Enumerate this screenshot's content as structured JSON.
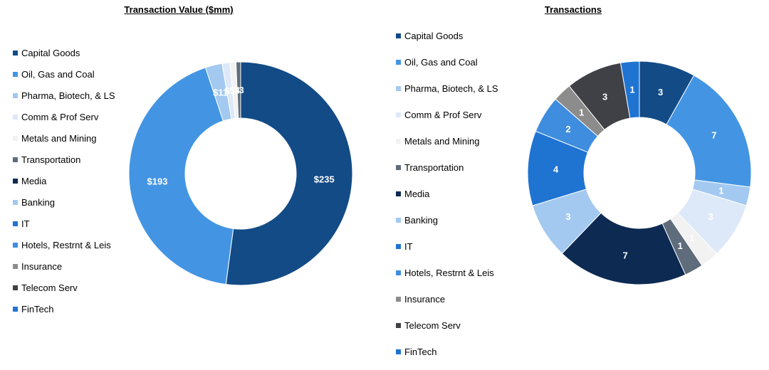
{
  "chart_data": [
    {
      "type": "pie",
      "subtype": "donut",
      "title": "Transaction Value ($mm)",
      "legend_position": "left",
      "categories": [
        "Capital Goods",
        "Oil, Gas and Coal",
        "Pharma, Biotech, & LS",
        "Comm & Prof Serv",
        "Metals and Mining",
        "Transportation",
        "Media",
        "Banking",
        "IT",
        "Hotels, Restrnt & Leis",
        "Insurance",
        "Telecom Serv",
        "FinTech"
      ],
      "values": [
        235,
        193,
        11,
        5,
        4,
        3,
        0,
        0,
        0,
        0,
        0,
        0,
        0
      ],
      "data_labels": [
        "$235",
        "$193",
        "$11",
        "$5",
        "$4",
        "$3",
        "",
        "",
        "",
        "",
        "",
        "",
        ""
      ],
      "colors": [
        "#134b86",
        "#4395e3",
        "#a3c9f1",
        "#dde9f8",
        "#f2f2f2",
        "#5e6c7b",
        "#0d2a52",
        "#a3c9f1",
        "#1f74d2",
        "#3e8ddf",
        "#8c8c8c",
        "#3f4146",
        "#1f74d2"
      ]
    },
    {
      "type": "pie",
      "subtype": "donut",
      "title": "Transactions",
      "legend_position": "left",
      "categories": [
        "Capital Goods",
        "Oil, Gas and Coal",
        "Pharma, Biotech, & LS",
        "Comm & Prof Serv",
        "Metals and Mining",
        "Transportation",
        "Media",
        "Banking",
        "IT",
        "Hotels, Restrnt & Leis",
        "Insurance",
        "Telecom Serv",
        "FinTech"
      ],
      "values": [
        3,
        7,
        1,
        3,
        1,
        1,
        7,
        3,
        4,
        2,
        1,
        3,
        1
      ],
      "data_labels": [
        "3",
        "7",
        "1",
        "3",
        "1",
        "1",
        "7",
        "3",
        "4",
        "2",
        "1",
        "3",
        "1"
      ],
      "colors": [
        "#134b86",
        "#4395e3",
        "#a3c9f1",
        "#dde9f8",
        "#f2f2f2",
        "#5e6c7b",
        "#0d2a52",
        "#a3c9f1",
        "#1f74d2",
        "#3e8ddf",
        "#8c8c8c",
        "#3f4146",
        "#1f74d2"
      ]
    }
  ]
}
